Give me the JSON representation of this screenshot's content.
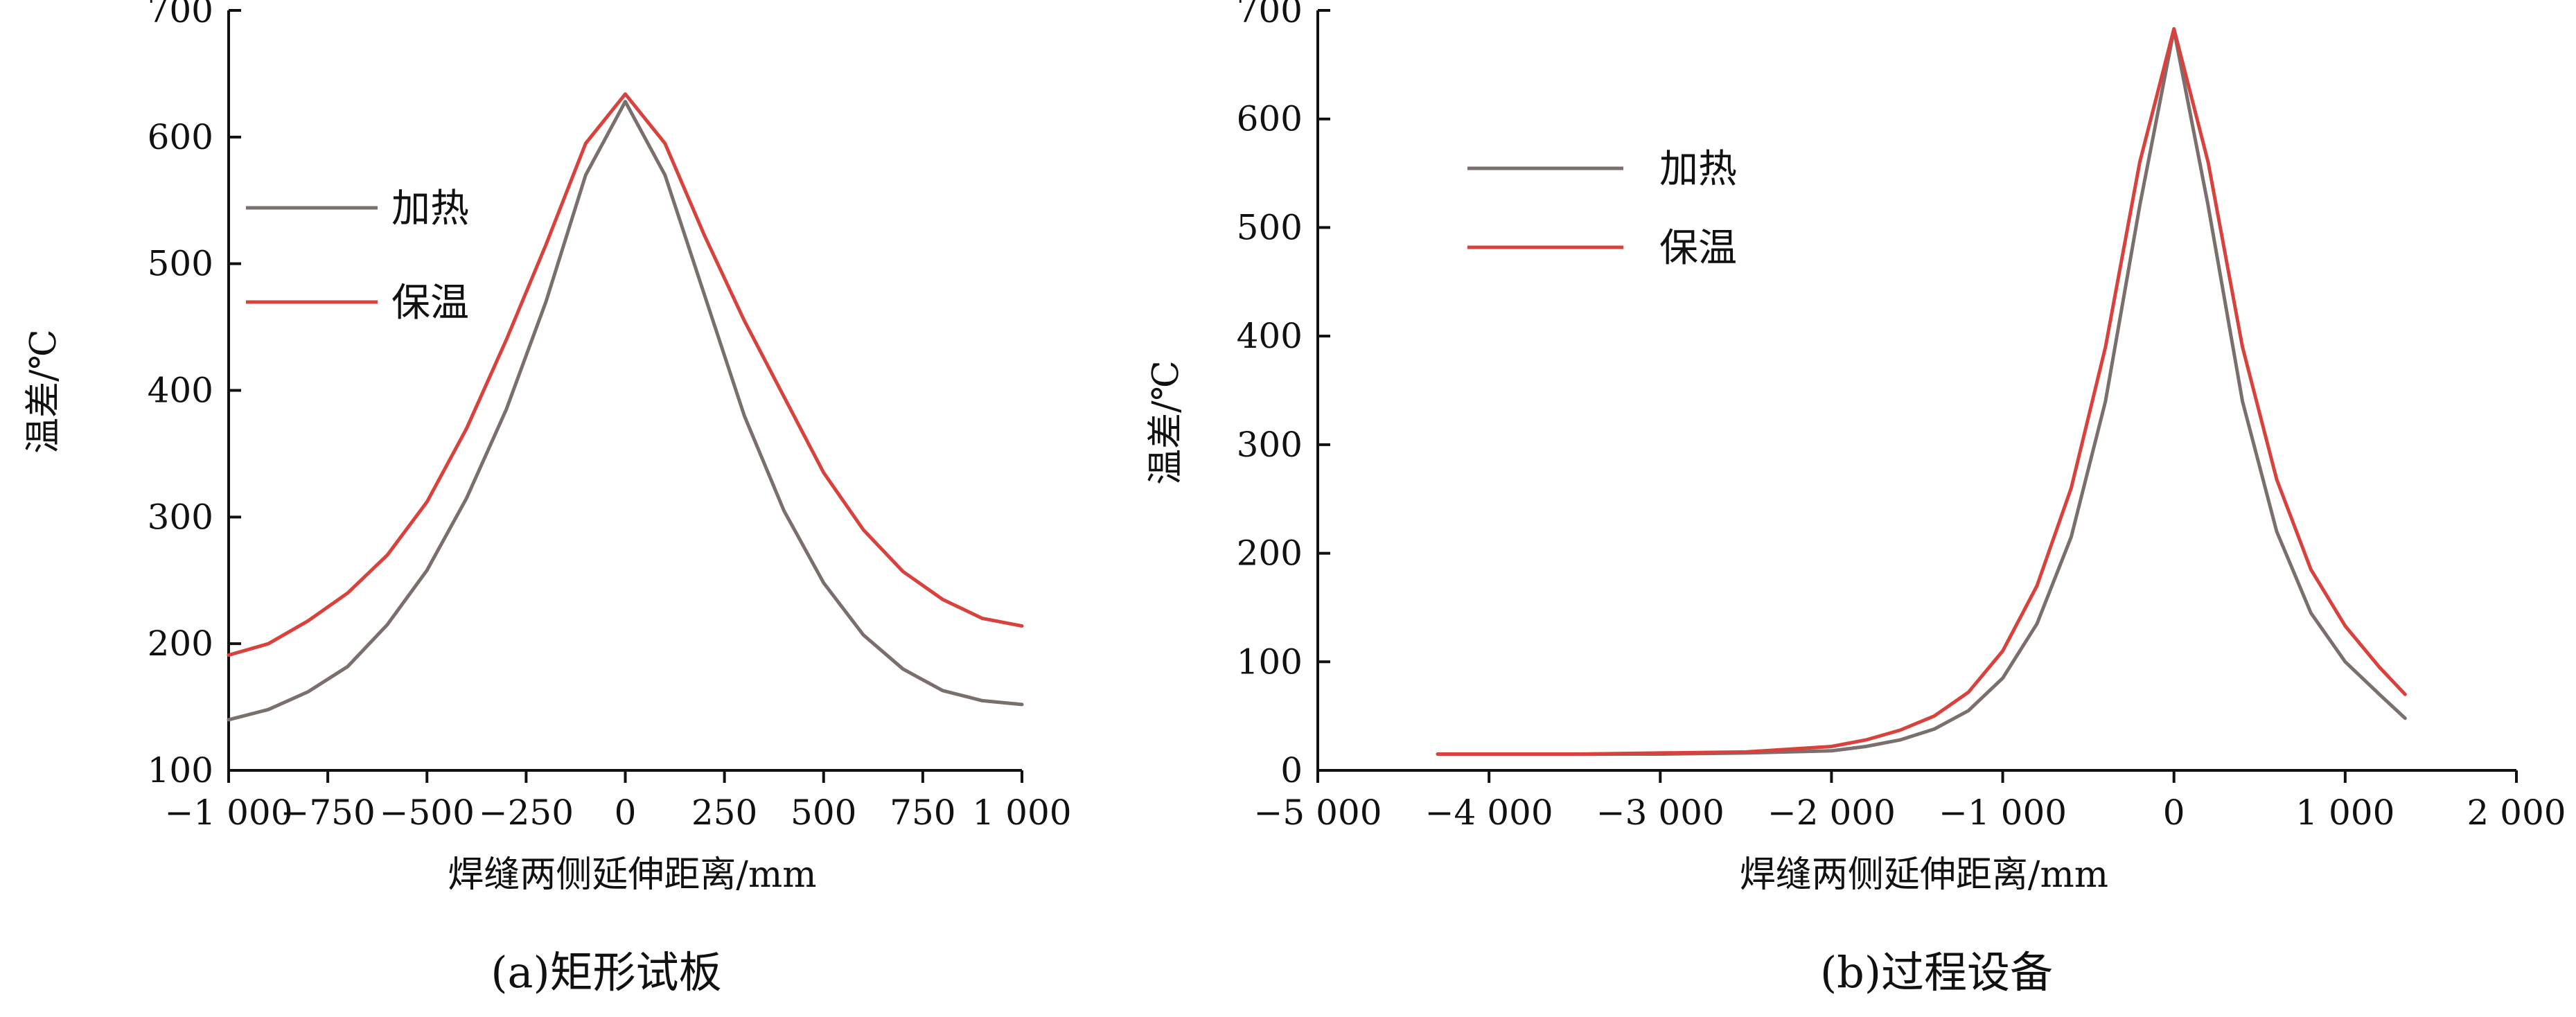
{
  "colors": {
    "heating": "#7a6f6c",
    "holding": "#d9413c"
  },
  "chart_data": [
    {
      "type": "line",
      "caption": "(a)矩形试板",
      "xlabel": "焊缝两侧延伸距离/mm",
      "ylabel": "温差/℃",
      "xlim": [
        -1000,
        1000
      ],
      "ylim": [
        100,
        700
      ],
      "xticks": [
        -1000,
        -750,
        -500,
        -250,
        0,
        250,
        500,
        750,
        1000
      ],
      "xtick_labels": [
        "−1 000",
        "−750",
        "−500",
        "−250",
        "0",
        "250",
        "500",
        "750",
        "1 000"
      ],
      "yticks": [
        100,
        200,
        300,
        400,
        500,
        600,
        700
      ],
      "ytick_labels": [
        "100",
        "200",
        "300",
        "400",
        "500",
        "600",
        "700"
      ],
      "legend_position": "middle-left",
      "series": [
        {
          "name": "加热",
          "color": "#7a6f6c",
          "x": [
            -1000,
            -900,
            -800,
            -700,
            -600,
            -500,
            -400,
            -300,
            -200,
            -100,
            0,
            100,
            200,
            300,
            400,
            500,
            600,
            700,
            800,
            900,
            1000
          ],
          "y": [
            140,
            148,
            162,
            182,
            215,
            258,
            315,
            385,
            470,
            570,
            628,
            570,
            475,
            380,
            305,
            248,
            207,
            180,
            163,
            155,
            152
          ]
        },
        {
          "name": "保温",
          "color": "#d9413c",
          "x": [
            -1000,
            -900,
            -800,
            -700,
            -600,
            -500,
            -400,
            -300,
            -200,
            -100,
            0,
            100,
            200,
            300,
            400,
            500,
            600,
            700,
            800,
            900,
            1000
          ],
          "y": [
            191,
            200,
            218,
            240,
            270,
            312,
            370,
            440,
            515,
            595,
            634,
            595,
            522,
            455,
            395,
            335,
            290,
            257,
            235,
            220,
            214
          ]
        }
      ]
    },
    {
      "type": "line",
      "caption": "(b)过程设备",
      "xlabel": "焊缝两侧延伸距离/mm",
      "ylabel": "温差/℃",
      "xlim": [
        -5000,
        2000
      ],
      "ylim": [
        0,
        700
      ],
      "xticks": [
        -5000,
        -4000,
        -3000,
        -2000,
        -1000,
        0,
        1000,
        2000
      ],
      "xtick_labels": [
        "−5 000",
        "−4 000",
        "−3 000",
        "−2 000",
        "−1 000",
        "0",
        "1 000",
        "2 000"
      ],
      "yticks": [
        0,
        100,
        200,
        300,
        400,
        500,
        600,
        700
      ],
      "ytick_labels": [
        "0",
        "100",
        "200",
        "300",
        "400",
        "500",
        "600",
        "700"
      ],
      "legend_position": "top-left",
      "series": [
        {
          "name": "加热",
          "color": "#7a6f6c",
          "x": [
            -4300,
            -3500,
            -3000,
            -2500,
            -2000,
            -1800,
            -1600,
            -1400,
            -1200,
            -1000,
            -800,
            -600,
            -400,
            -200,
            0,
            200,
            400,
            600,
            800,
            1000,
            1200,
            1350
          ],
          "y": [
            15,
            15,
            15,
            16,
            18,
            22,
            28,
            38,
            55,
            85,
            135,
            215,
            340,
            520,
            682,
            520,
            340,
            220,
            145,
            100,
            70,
            48
          ]
        },
        {
          "name": "保温",
          "color": "#d9413c",
          "x": [
            -4300,
            -3500,
            -3000,
            -2500,
            -2000,
            -1800,
            -1600,
            -1400,
            -1200,
            -1000,
            -800,
            -600,
            -400,
            -200,
            0,
            200,
            400,
            600,
            800,
            1000,
            1200,
            1350
          ],
          "y": [
            15,
            15,
            16,
            17,
            22,
            28,
            37,
            50,
            72,
            110,
            170,
            260,
            390,
            560,
            683,
            560,
            390,
            268,
            185,
            133,
            95,
            70
          ]
        }
      ]
    }
  ]
}
